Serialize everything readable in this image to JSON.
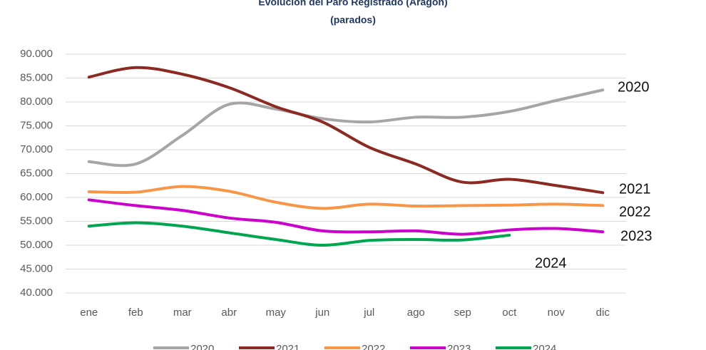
{
  "chart_data": {
    "type": "line",
    "title": "Evolución del Paro Registrado (Aragón)",
    "subtitle": "(parados)",
    "categories": [
      "ene",
      "feb",
      "mar",
      "abr",
      "may",
      "jun",
      "jul",
      "ago",
      "sep",
      "oct",
      "nov",
      "dic"
    ],
    "series": [
      {
        "name": "2020",
        "color": "#a6a6a6",
        "values": [
          67500,
          67000,
          73000,
          79500,
          78500,
          76500,
          75800,
          76800,
          76800,
          78000,
          80300,
          82500
        ]
      },
      {
        "name": "2021",
        "color": "#8b2a22",
        "values": [
          85200,
          87200,
          85800,
          83000,
          79000,
          75800,
          70500,
          67000,
          63200,
          63800,
          62500,
          61000
        ]
      },
      {
        "name": "2022",
        "color": "#f79646",
        "values": [
          61200,
          61100,
          62300,
          61300,
          59000,
          57700,
          58600,
          58200,
          58300,
          58400,
          58600,
          58300
        ]
      },
      {
        "name": "2023",
        "color": "#cc00cc",
        "values": [
          59500,
          58300,
          57300,
          55700,
          54800,
          53000,
          52800,
          53000,
          52300,
          53200,
          53500,
          52800
        ]
      },
      {
        "name": "2024",
        "color": "#00a550",
        "values": [
          54000,
          54700,
          54000,
          52600,
          51200,
          50000,
          51000,
          51200,
          51100,
          52100,
          null,
          null
        ]
      }
    ],
    "ylim": [
      40000,
      90000
    ],
    "yticks": [
      {
        "value": 40000,
        "label": "40.000"
      },
      {
        "value": 45000,
        "label": "45.000"
      },
      {
        "value": 50000,
        "label": "50.000"
      },
      {
        "value": 55000,
        "label": "55.000"
      },
      {
        "value": 60000,
        "label": "60.000"
      },
      {
        "value": 65000,
        "label": "65.000"
      },
      {
        "value": 70000,
        "label": "70.000"
      },
      {
        "value": 75000,
        "label": "75.000"
      },
      {
        "value": 80000,
        "label": "80.000"
      },
      {
        "value": 85000,
        "label": "85.000"
      },
      {
        "value": 90000,
        "label": "90.000"
      }
    ],
    "grid": true
  }
}
